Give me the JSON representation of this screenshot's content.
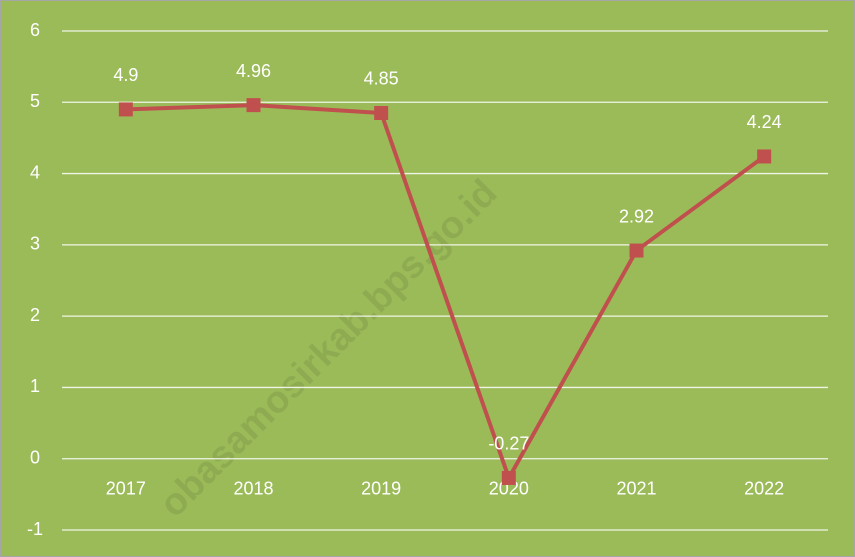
{
  "chart_data": {
    "type": "line",
    "categories": [
      "2017",
      "2018",
      "2019",
      "2020",
      "2021",
      "2022"
    ],
    "series": [
      {
        "name": null,
        "color": "#c0504d",
        "values": [
          4.9,
          4.96,
          4.85,
          -0.27,
          2.92,
          4.24
        ]
      }
    ],
    "ylim": [
      -1,
      6
    ],
    "yticks": [
      -1,
      0,
      1,
      2,
      3,
      4,
      5,
      6
    ],
    "grid": true,
    "background": "#9bbb59",
    "watermark": "obasamosirkab.bps.go.id"
  }
}
